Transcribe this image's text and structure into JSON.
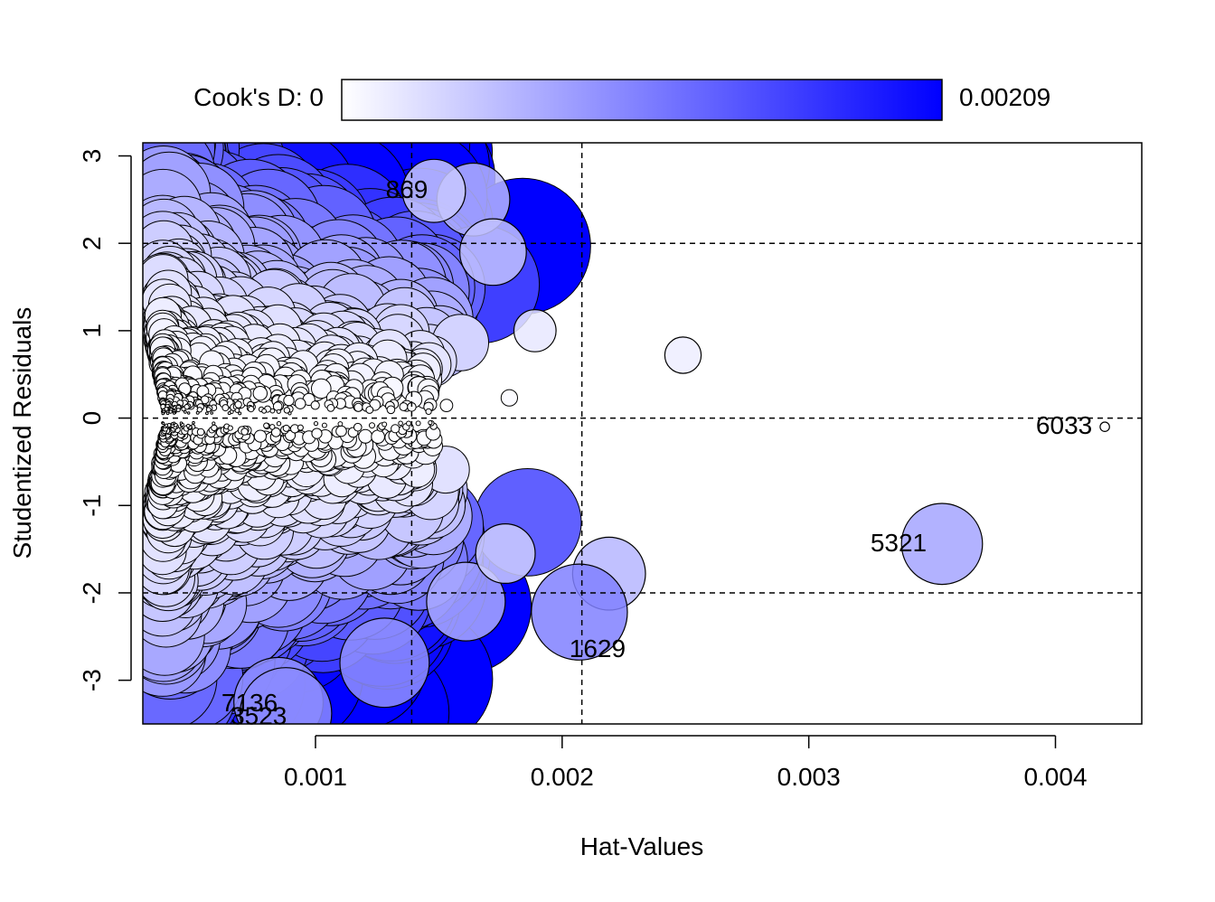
{
  "chart_data": {
    "type": "scatter",
    "title": "",
    "xlabel": "Hat-Values",
    "ylabel": "Studentized Residuals",
    "xlim": [
      0.0003,
      0.00435
    ],
    "ylim": [
      -3.5,
      3.15
    ],
    "x_ticks": [
      {
        "value": 0.001,
        "label": "0.001"
      },
      {
        "value": 0.002,
        "label": "0.002"
      },
      {
        "value": 0.003,
        "label": "0.003"
      },
      {
        "value": 0.004,
        "label": "0.004"
      }
    ],
    "y_ticks": [
      {
        "value": 3,
        "label": "3"
      },
      {
        "value": 2,
        "label": "2"
      },
      {
        "value": 1,
        "label": "1"
      },
      {
        "value": 0,
        "label": "0"
      },
      {
        "value": -1,
        "label": "-1"
      },
      {
        "value": -2,
        "label": "-2"
      },
      {
        "value": -3,
        "label": "-3"
      }
    ],
    "reference_lines": {
      "vertical": [
        0.00139,
        0.00208
      ],
      "horizontal": [
        2,
        0,
        -2
      ]
    },
    "colorbar": {
      "label_left": "Cook's D: 0",
      "label_right": "0.00209",
      "min": 0,
      "max": 0.00209,
      "color_low": "#ffffff",
      "color_high": "#0000ff"
    },
    "labeled_points": [
      {
        "id": "869",
        "hat": 0.00148,
        "rstudent": 2.6,
        "cooksd": 0.00045
      },
      {
        "id": "6033",
        "hat": 0.0042,
        "rstudent": -0.1,
        "cooksd": 1e-05
      },
      {
        "id": "5321",
        "hat": 0.00354,
        "rstudent": -1.44,
        "cooksd": 0.00074
      },
      {
        "id": "1629",
        "hat": 0.00207,
        "rstudent": -2.22,
        "cooksd": 0.00104
      },
      {
        "id": "7136",
        "hat": 0.00085,
        "rstudent": -3.25,
        "cooksd": 0.0009
      },
      {
        "id": "3523",
        "hat": 0.00088,
        "rstudent": -3.38,
        "cooksd": 0.00095
      }
    ],
    "notable_points": [
      {
        "hat": 0.00249,
        "rstudent": 0.72,
        "cooksd": 0.00015
      },
      {
        "hat": 0.00219,
        "rstudent": -1.78,
        "cooksd": 0.0006
      },
      {
        "hat": 0.00189,
        "rstudent": 1.0,
        "cooksd": 0.0002
      },
      {
        "hat": 0.00164,
        "rstudent": 2.5,
        "cooksd": 0.0006
      },
      {
        "hat": 0.00172,
        "rstudent": 1.9,
        "cooksd": 0.0005
      },
      {
        "hat": 0.00161,
        "rstudent": -2.1,
        "cooksd": 0.0007
      },
      {
        "hat": 0.00177,
        "rstudent": -1.55,
        "cooksd": 0.0004
      },
      {
        "hat": 0.00128,
        "rstudent": -2.8,
        "cooksd": 0.0009
      }
    ],
    "series_description": "about 7000 observations; bubble area proportional to Cook's D, fill colored by Cook's D"
  }
}
